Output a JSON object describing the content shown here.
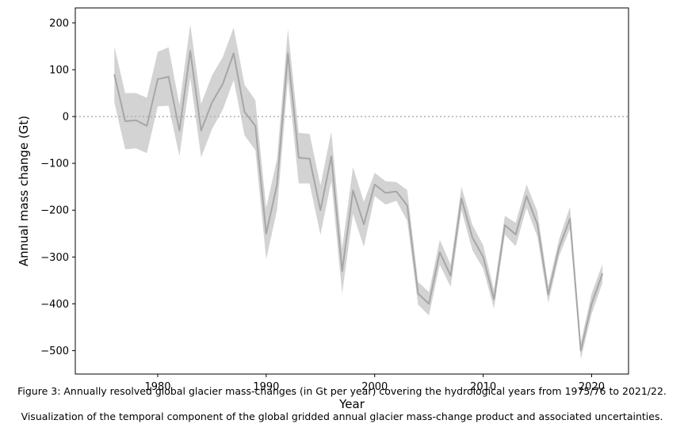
{
  "chart_data": {
    "type": "area",
    "xlabel": "Year",
    "ylabel": "Annual mass change (Gt)",
    "xlim": [
      1972.4,
      2023.4
    ],
    "ylim": [
      -550,
      232
    ],
    "xticks": [
      1980,
      1990,
      2000,
      2010,
      2020
    ],
    "yticks": [
      200,
      100,
      0,
      -100,
      -200,
      -300,
      -400,
      -500
    ],
    "reference_line": {
      "y": 0,
      "style": "dotted",
      "color": "#b0b0b0"
    },
    "grid": false,
    "x": [
      1976,
      1977,
      1978,
      1979,
      1980,
      1981,
      1982,
      1983,
      1984,
      1985,
      1986,
      1987,
      1988,
      1989,
      1990,
      1991,
      1992,
      1993,
      1994,
      1995,
      1996,
      1997,
      1998,
      1999,
      2000,
      2001,
      2002,
      2003,
      2004,
      2005,
      2006,
      2007,
      2008,
      2009,
      2010,
      2011,
      2012,
      2013,
      2014,
      2015,
      2016,
      2017,
      2018,
      2019,
      2020,
      2021
    ],
    "series": [
      {
        "values": [
          90,
          -10,
          -8,
          -20,
          80,
          85,
          -30,
          140,
          -30,
          30,
          70,
          135,
          10,
          -20,
          -250,
          -145,
          135,
          -88,
          -90,
          -200,
          -85,
          -330,
          -158,
          -230,
          -145,
          -163,
          -160,
          -190,
          -378,
          -400,
          -290,
          -340,
          -175,
          -258,
          -300,
          -390,
          -232,
          -252,
          -170,
          -230,
          -380,
          -280,
          -218,
          -500,
          -400,
          -335
        ],
        "lower": [
          30,
          -70,
          -68,
          -78,
          22,
          23,
          -85,
          83,
          -87,
          -27,
          15,
          78,
          -40,
          -72,
          -305,
          -200,
          80,
          -143,
          -143,
          -253,
          -138,
          -378,
          -208,
          -278,
          -170,
          -188,
          -180,
          -223,
          -402,
          -425,
          -317,
          -364,
          -200,
          -285,
          -325,
          -410,
          -252,
          -277,
          -195,
          -257,
          -398,
          -298,
          -240,
          -518,
          -422,
          -355
        ],
        "upper": [
          150,
          50,
          50,
          40,
          138,
          148,
          25,
          197,
          27,
          88,
          127,
          190,
          68,
          35,
          -195,
          -90,
          187,
          -35,
          -37,
          -147,
          -32,
          -282,
          -108,
          -182,
          -120,
          -138,
          -140,
          -157,
          -353,
          -375,
          -263,
          -316,
          -150,
          -231,
          -275,
          -370,
          -212,
          -227,
          -145,
          -203,
          -362,
          -262,
          -193,
          -482,
          -378,
          -315
        ],
        "line_color": "#a6a6a6",
        "band_color": "#d3d3d3"
      }
    ]
  },
  "caption": {
    "title": "Figure 3: Annually resolved global glacier mass-changes (in Gt per year) covering the hydrological years from 1975/76 to 2021/22.",
    "body": "Visualization of the temporal component of the global gridded annual glacier mass-change product and associated uncertainties."
  }
}
